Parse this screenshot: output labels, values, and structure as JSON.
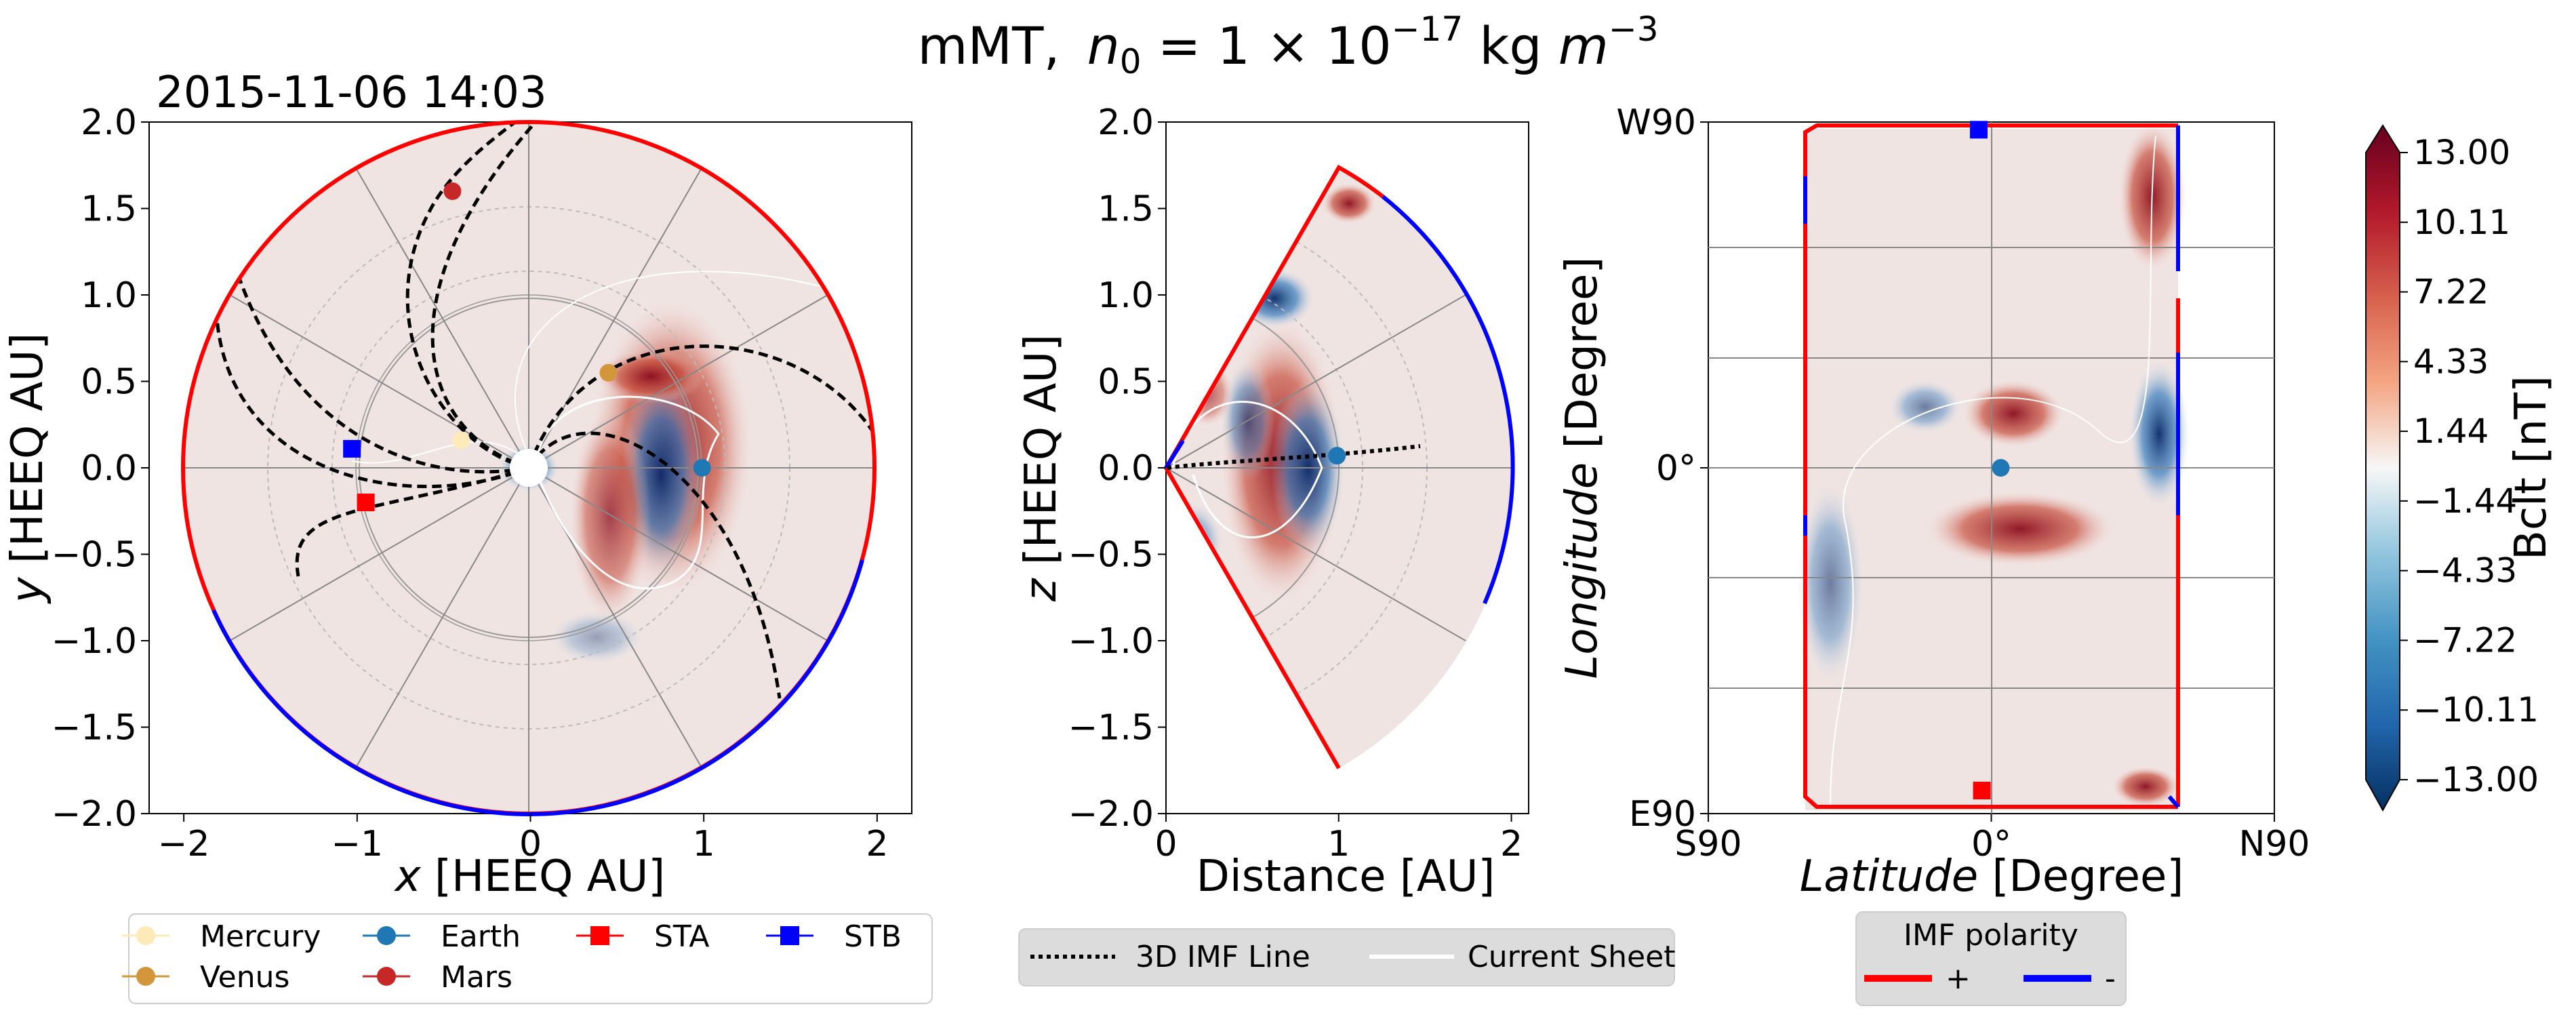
{
  "figure": {
    "title_prefix": "mMT,",
    "title_n": "n",
    "title_sub": "0",
    "title_eq": " = 1 × 10",
    "title_exp": "−17",
    "title_unit": " kg ",
    "title_m": "m",
    "title_mexp": "−3"
  },
  "panel1": {
    "timestamp": "2015-11-06 14:03",
    "xlabel_var": "x",
    "xlabel_unit": " [HEEQ AU]",
    "ylabel_var": "y",
    "ylabel_unit": " [HEEQ AU]",
    "xticks": [
      "−2",
      "−1",
      "0",
      "1",
      "2"
    ],
    "yticks": [
      "2.0",
      "1.5",
      "1.0",
      "0.5",
      "0.0",
      "−0.5",
      "−1.0",
      "−1.5",
      "−2.0"
    ]
  },
  "panel2": {
    "xlabel": "Distance [AU]",
    "ylabel_var": "z",
    "ylabel_unit": " [HEEQ AU]",
    "xticks": [
      "0",
      "1",
      "2"
    ],
    "yticks": [
      "2.0",
      "1.5",
      "1.0",
      "0.5",
      "0.0",
      "−0.5",
      "−1.0",
      "−1.5",
      "−2.0"
    ]
  },
  "panel3": {
    "xlabel_var": "Latitude",
    "xlabel_unit": " [Degree]",
    "ylabel_var": "Longitude",
    "ylabel_unit": " [Degree]",
    "xticks": [
      "S90",
      "0°",
      "N90"
    ],
    "yticks": [
      "W90",
      "0°",
      "E90"
    ]
  },
  "colorbar": {
    "label": "Bclt  [nT]",
    "ticks": [
      "13.00",
      "10.11",
      "7.22",
      "4.33",
      "1.44",
      "−1.44",
      "−4.33",
      "−7.22",
      "−10.11",
      "−13.00"
    ],
    "colors": [
      "#67001f",
      "#b2182b",
      "#d6604d",
      "#f4a582",
      "#f7f7f7",
      "#92c5de",
      "#4393c3",
      "#2166ac",
      "#053061"
    ]
  },
  "legend_bodies": {
    "items": [
      {
        "label": "Mercury",
        "color": "#fdeab8",
        "marker": "circle"
      },
      {
        "label": "Earth",
        "color": "#1f77b4",
        "marker": "circle"
      },
      {
        "label": "STA",
        "color": "#ff0000",
        "marker": "square"
      },
      {
        "label": "STB",
        "color": "#0000ff",
        "marker": "square"
      },
      {
        "label": "Venus",
        "color": "#d4963a",
        "marker": "circle"
      },
      {
        "label": "Mars",
        "color": "#c62828",
        "marker": "circle"
      }
    ]
  },
  "legend_lines": {
    "imf_label": "3D IMF Line",
    "sheet_label": "Current Sheet"
  },
  "legend_polarity": {
    "title": "IMF polarity",
    "plus_label": "+",
    "minus_label": "-",
    "plus_color": "#ff0000",
    "minus_color": "#0000ff"
  },
  "chart_data": [
    {
      "type": "scatter",
      "panel": "ecliptic x-y",
      "x_label": "x [HEEQ AU]",
      "y_label": "y [HEEQ AU]",
      "xlim": [
        -2.2,
        2.2
      ],
      "ylim": [
        -2.0,
        2.0
      ],
      "points": [
        {
          "name": "Mercury",
          "x": -0.4,
          "y": 0.16
        },
        {
          "name": "Venus",
          "x": 0.45,
          "y": 0.55
        },
        {
          "name": "Earth",
          "x": 0.99,
          "y": 0.0
        },
        {
          "name": "Mars",
          "x": -0.45,
          "y": 1.6
        },
        {
          "name": "STA",
          "x": -0.95,
          "y": -0.2
        },
        {
          "name": "STB",
          "x": -1.03,
          "y": 0.11
        }
      ],
      "outer_radius_au": 2.0
    },
    {
      "type": "scatter",
      "panel": "meridional distance-z",
      "x_label": "Distance [AU]",
      "y_label": "z [HEEQ AU]",
      "xlim": [
        0,
        2.1
      ],
      "ylim": [
        -2.0,
        2.0
      ],
      "points": [
        {
          "name": "Earth",
          "x": 0.99,
          "y": 0.07
        }
      ]
    },
    {
      "type": "scatter",
      "panel": "latitude-longitude",
      "x_label": "Latitude [Degree]",
      "y_label": "Longitude [Degree]",
      "xlim": [
        -90,
        90
      ],
      "ylim": [
        -90,
        90
      ],
      "points": [
        {
          "name": "Earth",
          "x": 3,
          "y": 0
        },
        {
          "name": "STA",
          "x": -3,
          "y": -84
        },
        {
          "name": "STB",
          "x": -4,
          "y": 88
        }
      ]
    }
  ]
}
